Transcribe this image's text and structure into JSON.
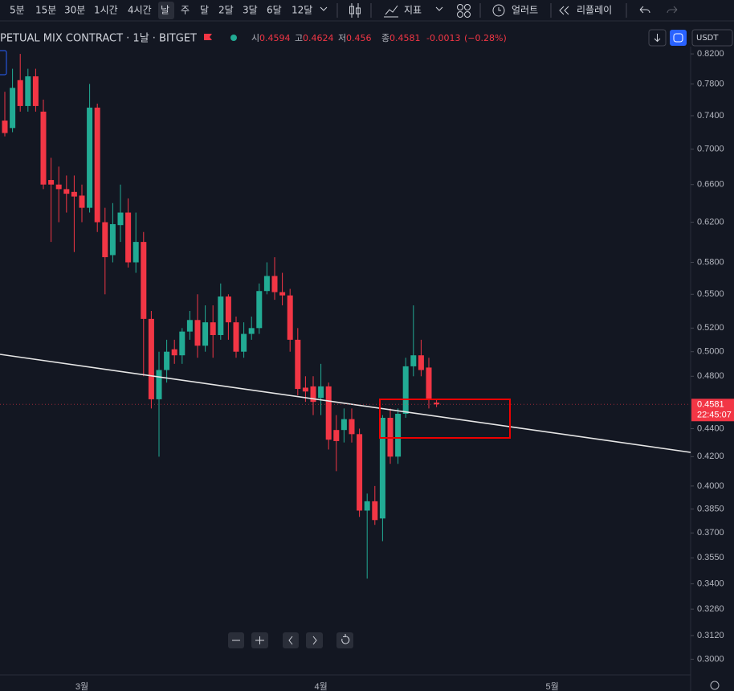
{
  "toolbar": {
    "intervals": [
      "5분",
      "15분",
      "30분",
      "1시간",
      "4시간",
      "날",
      "주",
      "달",
      "2달",
      "3달",
      "6달",
      "12달"
    ],
    "indicators": "지표",
    "alerts": "얼러트",
    "replay": "리플레이"
  },
  "header": {
    "symbol": "PETUAL MIX CONTRACT · 1날 · BITGET",
    "open_label": "시",
    "high_label": "고",
    "low_label": "저",
    "close_label": "종",
    "change": "-0.0013",
    "change_pct": "(−0.28%)",
    "currency": "USDT"
  },
  "chart_data": {
    "type": "candlestick",
    "log_scale": true,
    "grid": false,
    "up_color": "#22ab94",
    "down_color": "#f23645",
    "countdown": "22:45:07",
    "categories": [
      null,
      null,
      null,
      null,
      null,
      null,
      null,
      null,
      null,
      null,
      "3월",
      null,
      null,
      null,
      null,
      null,
      null,
      null,
      null,
      null,
      null,
      null,
      null,
      null,
      null,
      null,
      null,
      null,
      null,
      null,
      null,
      null,
      null,
      null,
      null,
      null,
      null,
      null,
      null,
      null,
      null,
      "4월",
      null,
      null,
      null,
      null,
      null,
      null,
      null,
      null,
      null,
      null,
      null,
      null,
      null,
      null,
      null,
      null,
      null,
      null,
      null,
      null,
      null,
      null,
      null,
      null,
      null,
      null,
      null,
      null,
      null,
      "5월"
    ],
    "open": [
      0.734,
      0.725,
      0.785,
      0.752,
      0.79,
      0.745,
      0.665,
      0.66,
      0.655,
      0.652,
      0.648,
      0.635,
      0.75,
      0.62,
      0.587,
      0.617,
      0.63,
      0.58,
      0.6,
      0.528,
      0.462,
      0.485,
      0.502,
      0.497,
      0.517,
      0.527,
      0.505,
      0.525,
      0.514,
      0.548,
      0.525,
      0.5,
      0.515,
      0.52,
      0.553,
      0.567,
      0.552,
      0.549,
      0.51,
      0.471,
      0.472,
      0.463,
      0.472,
      0.439,
      0.439,
      0.447,
      0.436,
      0.384,
      0.39,
      0.379,
      0.448,
      0.42,
      0.451,
      0.488,
      0.497,
      0.487,
      0.4594,
      null,
      null,
      null,
      null,
      null,
      null,
      null,
      null,
      null,
      null,
      null,
      null,
      null,
      null,
      null
    ],
    "high": [
      0.77,
      0.8,
      0.82,
      0.8,
      0.8,
      0.76,
      0.69,
      0.68,
      0.67,
      0.67,
      0.66,
      0.78,
      0.755,
      0.635,
      0.64,
      0.66,
      0.645,
      0.63,
      0.61,
      0.535,
      0.5,
      0.51,
      0.51,
      0.52,
      0.535,
      0.55,
      0.54,
      0.54,
      0.56,
      0.55,
      0.53,
      0.525,
      0.53,
      0.56,
      0.58,
      0.585,
      0.57,
      0.555,
      0.52,
      0.48,
      0.48,
      0.49,
      0.475,
      0.45,
      0.455,
      0.455,
      0.44,
      0.395,
      0.4,
      0.45,
      0.455,
      0.455,
      0.495,
      0.54,
      0.51,
      0.495,
      0.4624,
      null,
      null,
      null,
      null,
      null,
      null,
      null,
      null,
      null,
      null,
      null,
      null,
      null,
      null,
      null
    ],
    "low": [
      0.715,
      0.72,
      0.745,
      0.745,
      0.745,
      0.655,
      0.6,
      0.62,
      0.63,
      0.59,
      0.62,
      0.63,
      0.61,
      0.55,
      0.58,
      0.6,
      0.575,
      0.57,
      0.48,
      0.455,
      0.42,
      0.475,
      0.49,
      0.49,
      0.51,
      0.495,
      0.5,
      0.495,
      0.51,
      0.51,
      0.495,
      0.495,
      0.51,
      0.515,
      0.55,
      0.545,
      0.54,
      0.5,
      0.465,
      0.46,
      0.45,
      0.45,
      0.425,
      0.41,
      0.43,
      0.43,
      0.38,
      0.343,
      0.375,
      0.365,
      0.415,
      0.415,
      0.448,
      0.48,
      0.48,
      0.455,
      0.456,
      null,
      null,
      null,
      null,
      null,
      null,
      null,
      null,
      null,
      null,
      null,
      null,
      null,
      null,
      null
    ],
    "close": [
      0.719,
      0.775,
      0.752,
      0.79,
      0.752,
      0.66,
      0.66,
      0.655,
      0.65,
      0.647,
      0.635,
      0.75,
      0.62,
      0.585,
      0.618,
      0.63,
      0.58,
      0.6,
      0.528,
      0.462,
      0.485,
      0.5,
      0.497,
      0.517,
      0.527,
      0.505,
      0.525,
      0.514,
      0.548,
      0.525,
      0.5,
      0.515,
      0.52,
      0.553,
      0.567,
      0.552,
      0.549,
      0.51,
      0.47,
      0.468,
      0.46,
      0.472,
      0.432,
      0.431,
      0.447,
      0.436,
      0.384,
      0.39,
      0.378,
      0.448,
      0.42,
      0.451,
      0.488,
      0.497,
      0.485,
      0.462,
      0.4581,
      null,
      null,
      null,
      null,
      null,
      null,
      null,
      null,
      null,
      null,
      null,
      null,
      null,
      null,
      null
    ],
    "ylim": [
      0.295,
      0.83
    ],
    "yticks": [
      {
        "value": 0.3,
        "label": "0.3000"
      },
      {
        "value": 0.312,
        "label": "0.3120"
      },
      {
        "value": 0.326,
        "label": "0.3260"
      },
      {
        "value": 0.34,
        "label": "0.3400"
      },
      {
        "value": 0.355,
        "label": "0.3550"
      },
      {
        "value": 0.37,
        "label": "0.3700"
      },
      {
        "value": 0.385,
        "label": "0.3850"
      },
      {
        "value": 0.4,
        "label": "0.4000"
      },
      {
        "value": 0.42,
        "label": "0.4200"
      },
      {
        "value": 0.44,
        "label": "0.4400"
      },
      {
        "value": 0.48,
        "label": "0.4800"
      },
      {
        "value": 0.5,
        "label": "0.5000"
      },
      {
        "value": 0.52,
        "label": "0.5200"
      },
      {
        "value": 0.55,
        "label": "0.5500"
      },
      {
        "value": 0.58,
        "label": "0.5800"
      },
      {
        "value": 0.62,
        "label": "0.6200"
      },
      {
        "value": 0.66,
        "label": "0.6600"
      },
      {
        "value": 0.7,
        "label": "0.7000"
      },
      {
        "value": 0.74,
        "label": "0.7400"
      },
      {
        "value": 0.78,
        "label": "0.7800"
      },
      {
        "value": 0.82,
        "label": "0.8200"
      }
    ]
  }
}
